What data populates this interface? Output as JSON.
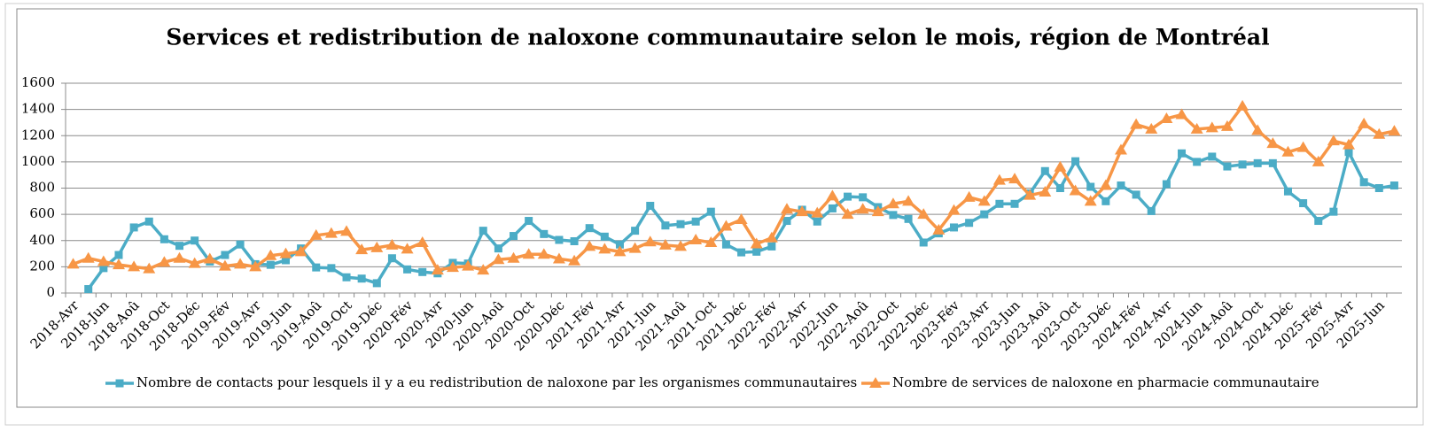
{
  "chart_data": {
    "type": "line",
    "title": "Services et redistribution de naloxone communautaire selon le mois, région de Montréal",
    "categories": [
      "2018-Avr",
      null,
      "2018-Jun",
      null,
      "2018-Aoû",
      null,
      "2018-Oct",
      null,
      "2018-Déc",
      null,
      "2019-Fév",
      null,
      "2019-Avr",
      null,
      "2019-Jun",
      null,
      "2019-Aoû",
      null,
      "2019-Oct",
      null,
      "2019-Déc",
      null,
      "2020-Fév",
      null,
      "2020-Avr",
      null,
      "2020-Jun",
      null,
      "2020-Aoû",
      null,
      "2020-Oct",
      null,
      "2020-Déc",
      null,
      "2021-Fév",
      null,
      "2021-Avr",
      null,
      "2021-Jun",
      null,
      "2021-Aoû",
      null,
      "2021-Oct",
      null,
      "2021-Déc",
      null,
      "2022-Fév",
      null,
      "2022-Avr",
      null,
      "2022-Jun",
      null,
      "2022-Aoû",
      null,
      "2022-Oct",
      null,
      "2022-Déc",
      null,
      "2023-Fév",
      null,
      "2023-Avr",
      null,
      "2023-Jun",
      null,
      "2023-Aoû",
      null,
      "2023-Oct",
      null,
      "2023-Déc",
      null,
      "2024-Fév",
      null,
      "2024-Avr",
      null,
      "2024-Jun",
      null,
      "2024-Aoû",
      null,
      "2024-Oct",
      null,
      "2024-Déc",
      null,
      "2025-Fév",
      null,
      "2025-Avr",
      null,
      "2025-Jun",
      null
    ],
    "series": [
      {
        "name": "Nombre de contacts pour lesquels il y a eu redistribution de naloxone par les organismes communautaires",
        "color": "#4bacc6",
        "marker": "square",
        "values": [
          null,
          30,
          190,
          290,
          500,
          545,
          410,
          360,
          400,
          240,
          290,
          370,
          220,
          215,
          250,
          340,
          195,
          190,
          120,
          110,
          75,
          265,
          180,
          160,
          150,
          230,
          225,
          475,
          340,
          435,
          550,
          450,
          405,
          395,
          495,
          430,
          370,
          475,
          665,
          515,
          525,
          545,
          620,
          370,
          310,
          315,
          355,
          550,
          635,
          545,
          645,
          735,
          730,
          655,
          595,
          565,
          385,
          455,
          500,
          535,
          600,
          680,
          680,
          760,
          930,
          800,
          1005,
          810,
          700,
          820,
          750,
          625,
          830,
          1065,
          1000,
          1040,
          965,
          980,
          990,
          990,
          775,
          685,
          550,
          620,
          1075,
          845,
          800,
          820
        ]
      },
      {
        "name": "Nombre de services de naloxone en pharmacie communautaire",
        "color": "#f79646",
        "marker": "triangle",
        "values": [
          220,
          265,
          240,
          215,
          200,
          185,
          235,
          265,
          225,
          260,
          205,
          220,
          200,
          285,
          300,
          315,
          440,
          455,
          470,
          330,
          345,
          365,
          335,
          385,
          175,
          195,
          205,
          175,
          255,
          265,
          295,
          295,
          260,
          245,
          355,
          335,
          315,
          340,
          390,
          365,
          355,
          405,
          385,
          510,
          560,
          375,
          420,
          640,
          620,
          610,
          740,
          600,
          640,
          620,
          680,
          700,
          600,
          480,
          630,
          730,
          700,
          860,
          870,
          745,
          770,
          960,
          780,
          700,
          820,
          1090,
          1285,
          1250,
          1330,
          1360,
          1250,
          1260,
          1270,
          1425,
          1240,
          1140,
          1075,
          1110,
          1000,
          1160,
          1130,
          1290,
          1210,
          1235
        ]
      }
    ],
    "ylim": [
      0,
      1600
    ],
    "yticks": [
      0,
      200,
      400,
      600,
      800,
      1000,
      1200,
      1400,
      1600
    ],
    "grid": true
  }
}
